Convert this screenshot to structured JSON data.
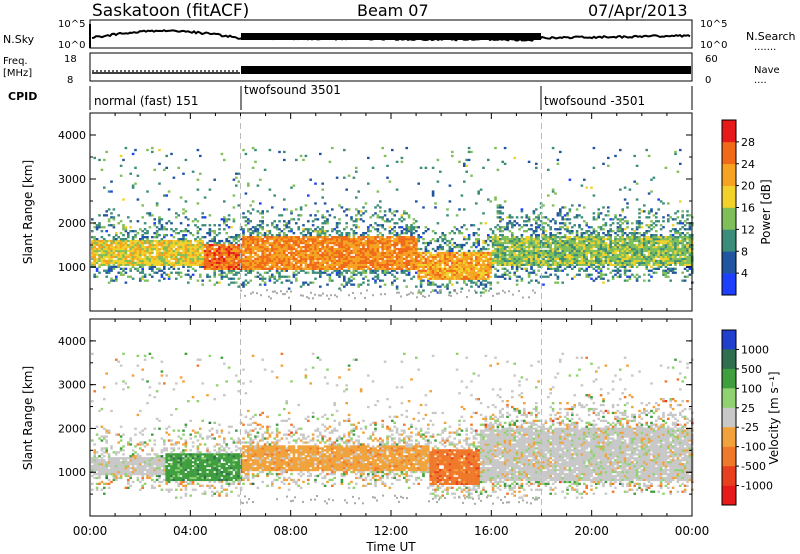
{
  "header": {
    "station": "Saskatoon (fitACF)",
    "beam": "Beam 07",
    "date": "07/Apr/2013"
  },
  "panels": {
    "sky": {
      "left_label": "N.Sky",
      "left_ticks": [
        "10^5",
        "10^0"
      ],
      "right_ticks": [
        "10^5",
        "10^0"
      ],
      "right_label": "N.Search",
      "right_legend_line": "......."
    },
    "freq": {
      "left_label_line1": "Freq.",
      "left_label_line2": "[MHz]",
      "left_ticks": [
        "18",
        "8"
      ],
      "right_ticks": [
        "60",
        "0"
      ],
      "right_label": "Nave",
      "right_legend_line": "...."
    },
    "cpid": {
      "label": "CPID",
      "segments": [
        "normal (fast) 151",
        "twofsound 3501",
        "twofsound -3501"
      ]
    }
  },
  "chart_data": [
    {
      "type": "heatmap",
      "name": "power",
      "xlabel": "",
      "ylabel": "Slant Range [km]",
      "xlim": [
        0,
        24
      ],
      "ylim": [
        0,
        4500
      ],
      "yticks": [
        "1000",
        "2000",
        "3000",
        "4000"
      ],
      "x_segments": [
        {
          "start": 0,
          "end": 4.5,
          "core": [
            1000,
            1600
          ],
          "value": 20,
          "label": "normal (fast) 151"
        },
        {
          "start": 4.5,
          "end": 6,
          "core": [
            900,
            1500
          ],
          "value": 28
        },
        {
          "start": 6,
          "end": 13,
          "core": [
            900,
            1700
          ],
          "value": 26
        },
        {
          "start": 13,
          "end": 16,
          "core": [
            700,
            1300
          ],
          "value": 24
        },
        {
          "start": 16,
          "end": 24,
          "core": [
            1000,
            1700
          ],
          "value": 16
        }
      ],
      "colorbar": {
        "label": "Power [dB]",
        "ticks": [
          "4",
          "8",
          "12",
          "16",
          "20",
          "24",
          "28"
        ],
        "colors": [
          "#1f3fff",
          "#2255a0",
          "#3b8d7a",
          "#7fbf5a",
          "#f2d22a",
          "#f5a320",
          "#f06a18",
          "#e61a1a"
        ]
      }
    },
    {
      "type": "heatmap",
      "name": "velocity",
      "xlabel": "Time UT",
      "ylabel": "Slant Range [km]",
      "xlim": [
        0,
        24
      ],
      "ylim": [
        0,
        4500
      ],
      "xticks": [
        "00:00",
        "04:00",
        "08:00",
        "12:00",
        "16:00",
        "20:00",
        "00:00"
      ],
      "yticks": [
        "1000",
        "2000",
        "3000",
        "4000"
      ],
      "x_segments": [
        {
          "start": 0,
          "end": 3,
          "core": [
            900,
            1300
          ],
          "value": -25
        },
        {
          "start": 3,
          "end": 6,
          "core": [
            800,
            1400
          ],
          "value": 100
        },
        {
          "start": 6,
          "end": 13.5,
          "core": [
            1000,
            1600
          ],
          "value": -100
        },
        {
          "start": 13.5,
          "end": 15.5,
          "core": [
            700,
            1500
          ],
          "value": -300
        },
        {
          "start": 15.5,
          "end": 24,
          "core": [
            800,
            2000
          ],
          "value": 0
        }
      ],
      "colorbar": {
        "label": "Velocity [m s⁻¹]",
        "ticks": [
          "1000",
          "500",
          "100",
          "25",
          "-25",
          "-100",
          "-500",
          "-1000"
        ],
        "colors": [
          "#1f3fcc",
          "#2f6f4f",
          "#3f9f3f",
          "#8fd26f",
          "#c8c8c8",
          "#f2a23a",
          "#f0782a",
          "#e8401e",
          "#e61a1a"
        ]
      }
    }
  ],
  "styles": {
    "axis_color": "#000000",
    "dash_color": "#bbbbbb",
    "ground_scatter_color": "#aaaaaa"
  }
}
